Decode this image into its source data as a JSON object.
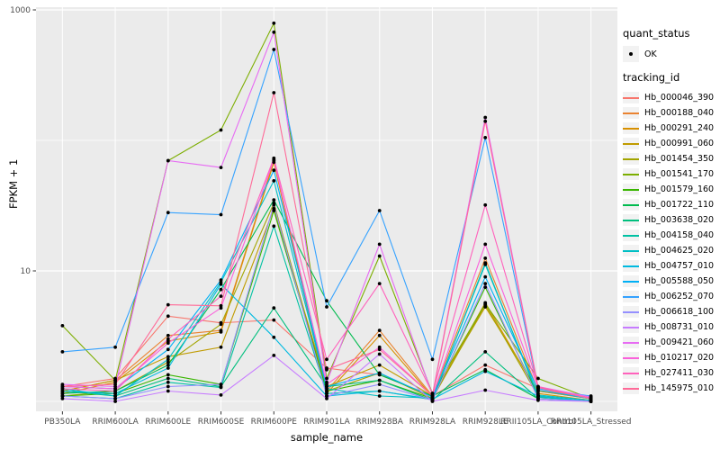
{
  "figure": {
    "y_axis_title": "FPKM + 1",
    "x_axis_title": "sample_name",
    "colors": {
      "panel_bg": "#EBEBEB",
      "gridline": "#FFFFFF",
      "point": "#000000",
      "tick_text": "#4d4d4d",
      "legend_key_bg": "#F2F2F2"
    }
  },
  "legend": {
    "quant_status_title": "quant_status",
    "quant_status_items": [
      {
        "label": "OK",
        "marker": "point"
      }
    ],
    "tracking_id_title": "tracking_id"
  },
  "chart_data": {
    "type": "line",
    "title": "",
    "x_label": "sample_name",
    "y_label": "FPKM + 1",
    "y_scale": "log10",
    "y_range": [
      1,
      1000
    ],
    "y_ticks_labeled": [
      1000,
      10
    ],
    "y_gridlines": [
      1,
      10,
      100,
      1000
    ],
    "grid": true,
    "legend_position": "right",
    "point_marker": "black-dot",
    "categories": [
      "PB350LA",
      "RRIM600LA",
      "RRIM600LE",
      "RRIM600SE",
      "RRIM600PE",
      "RRIM901LA",
      "RRIM928BA",
      "RRIM928LA",
      "RRIM928LE",
      "RRII105LA_Control",
      "RRII105LA_Stressed"
    ],
    "series": [
      {
        "name": "Hb_000046_390",
        "color": "#F8766D",
        "values": [
          1.3,
          1.5,
          4.5,
          4.0,
          4.2,
          1.8,
          1.6,
          1.1,
          1.9,
          1.25,
          1.05
        ]
      },
      {
        "name": "Hb_000188_040",
        "color": "#EA8331",
        "values": [
          1.2,
          1.45,
          3.2,
          3.5,
          70,
          1.2,
          3.5,
          1.1,
          12.5,
          1.2,
          1.05
        ]
      },
      {
        "name": "Hb_000291_240",
        "color": "#D89000",
        "values": [
          1.15,
          1.4,
          2.9,
          3.4,
          68,
          1.15,
          3.2,
          1.08,
          5.7,
          1.15,
          1.02
        ]
      },
      {
        "name": "Hb_000991_060",
        "color": "#C09B00",
        "values": [
          1.2,
          1.45,
          2.2,
          2.6,
          30,
          1.3,
          1.9,
          1.1,
          5.3,
          1.2,
          1.05
        ]
      },
      {
        "name": "Hb_001454_350",
        "color": "#A3A500",
        "values": [
          1.1,
          1.2,
          2.0,
          3.9,
          33,
          1.2,
          1.65,
          1.05,
          5.5,
          1.1,
          1.0
        ]
      },
      {
        "name": "Hb_001541_170",
        "color": "#7CAE00",
        "values": [
          3.8,
          1.45,
          70,
          120,
          790,
          1.5,
          13.0,
          1.15,
          5.6,
          1.5,
          1.05
        ]
      },
      {
        "name": "Hb_001579_160",
        "color": "#39B600",
        "values": [
          1.1,
          1.15,
          1.6,
          1.35,
          29,
          1.2,
          1.45,
          1.05,
          7.5,
          1.1,
          1.0
        ]
      },
      {
        "name": "Hb_001722_110",
        "color": "#00BB4E",
        "values": [
          1.15,
          1.2,
          1.9,
          7.2,
          35,
          5.9,
          1.6,
          1.1,
          1.75,
          1.05,
          1.0
        ]
      },
      {
        "name": "Hb_003638_020",
        "color": "#00BF7D",
        "values": [
          1.2,
          1.1,
          1.5,
          1.3,
          5.2,
          1.3,
          1.45,
          1.02,
          2.4,
          1.05,
          1.0
        ]
      },
      {
        "name": "Hb_004158_040",
        "color": "#00C1A3",
        "values": [
          1.1,
          1.05,
          1.4,
          1.28,
          22,
          1.15,
          1.2,
          1.03,
          11.5,
          1.08,
          1.0
        ]
      },
      {
        "name": "Hb_004625_020",
        "color": "#00BFC4",
        "values": [
          1.25,
          1.1,
          2.1,
          8.2,
          49,
          1.25,
          1.1,
          1.06,
          11.2,
          1.12,
          1.02
        ]
      },
      {
        "name": "Hb_004757_010",
        "color": "#00BAE0",
        "values": [
          1.2,
          1.15,
          1.8,
          7.9,
          3.1,
          1.1,
          1.2,
          1.04,
          1.7,
          1.1,
          1.0
        ]
      },
      {
        "name": "Hb_005588_050",
        "color": "#00B0F6",
        "values": [
          1.3,
          1.25,
          2.5,
          8.5,
          59,
          1.3,
          1.65,
          1.08,
          9.0,
          1.22,
          1.05
        ]
      },
      {
        "name": "Hb_006252_070",
        "color": "#35A2FF",
        "values": [
          2.4,
          2.6,
          28,
          27,
          497,
          5.3,
          29.0,
          2.1,
          105,
          1.25,
          1.1
        ]
      },
      {
        "name": "Hb_006618_100",
        "color": "#9590FF",
        "values": [
          1.1,
          1.05,
          1.3,
          1.35,
          32,
          1.1,
          1.35,
          1.02,
          8.0,
          1.05,
          1.0
        ]
      },
      {
        "name": "Hb_008731_010",
        "color": "#C77CFF",
        "values": [
          1.05,
          1.0,
          1.2,
          1.12,
          2.25,
          1.05,
          2.3,
          1.0,
          1.22,
          1.02,
          1.0
        ]
      },
      {
        "name": "Hb_009421_060",
        "color": "#E76BF3",
        "values": [
          1.35,
          1.3,
          70,
          62,
          674,
          1.4,
          16.0,
          1.12,
          150,
          1.3,
          1.08
        ]
      },
      {
        "name": "Hb_010217_020",
        "color": "#FA62DB",
        "values": [
          1.3,
          1.25,
          2.8,
          5.2,
          71,
          1.35,
          2.6,
          1.1,
          16,
          1.28,
          1.06
        ]
      },
      {
        "name": "Hb_027411_030",
        "color": "#FF62BC",
        "values": [
          1.25,
          1.2,
          3.0,
          6.4,
          73,
          2.1,
          8.0,
          1.15,
          32,
          1.3,
          1.05
        ]
      },
      {
        "name": "Hb_145975_010",
        "color": "#FF6A98",
        "values": [
          1.3,
          1.35,
          5.5,
          5.4,
          232,
          1.75,
          2.5,
          1.1,
          140,
          1.28,
          1.05
        ]
      }
    ]
  }
}
